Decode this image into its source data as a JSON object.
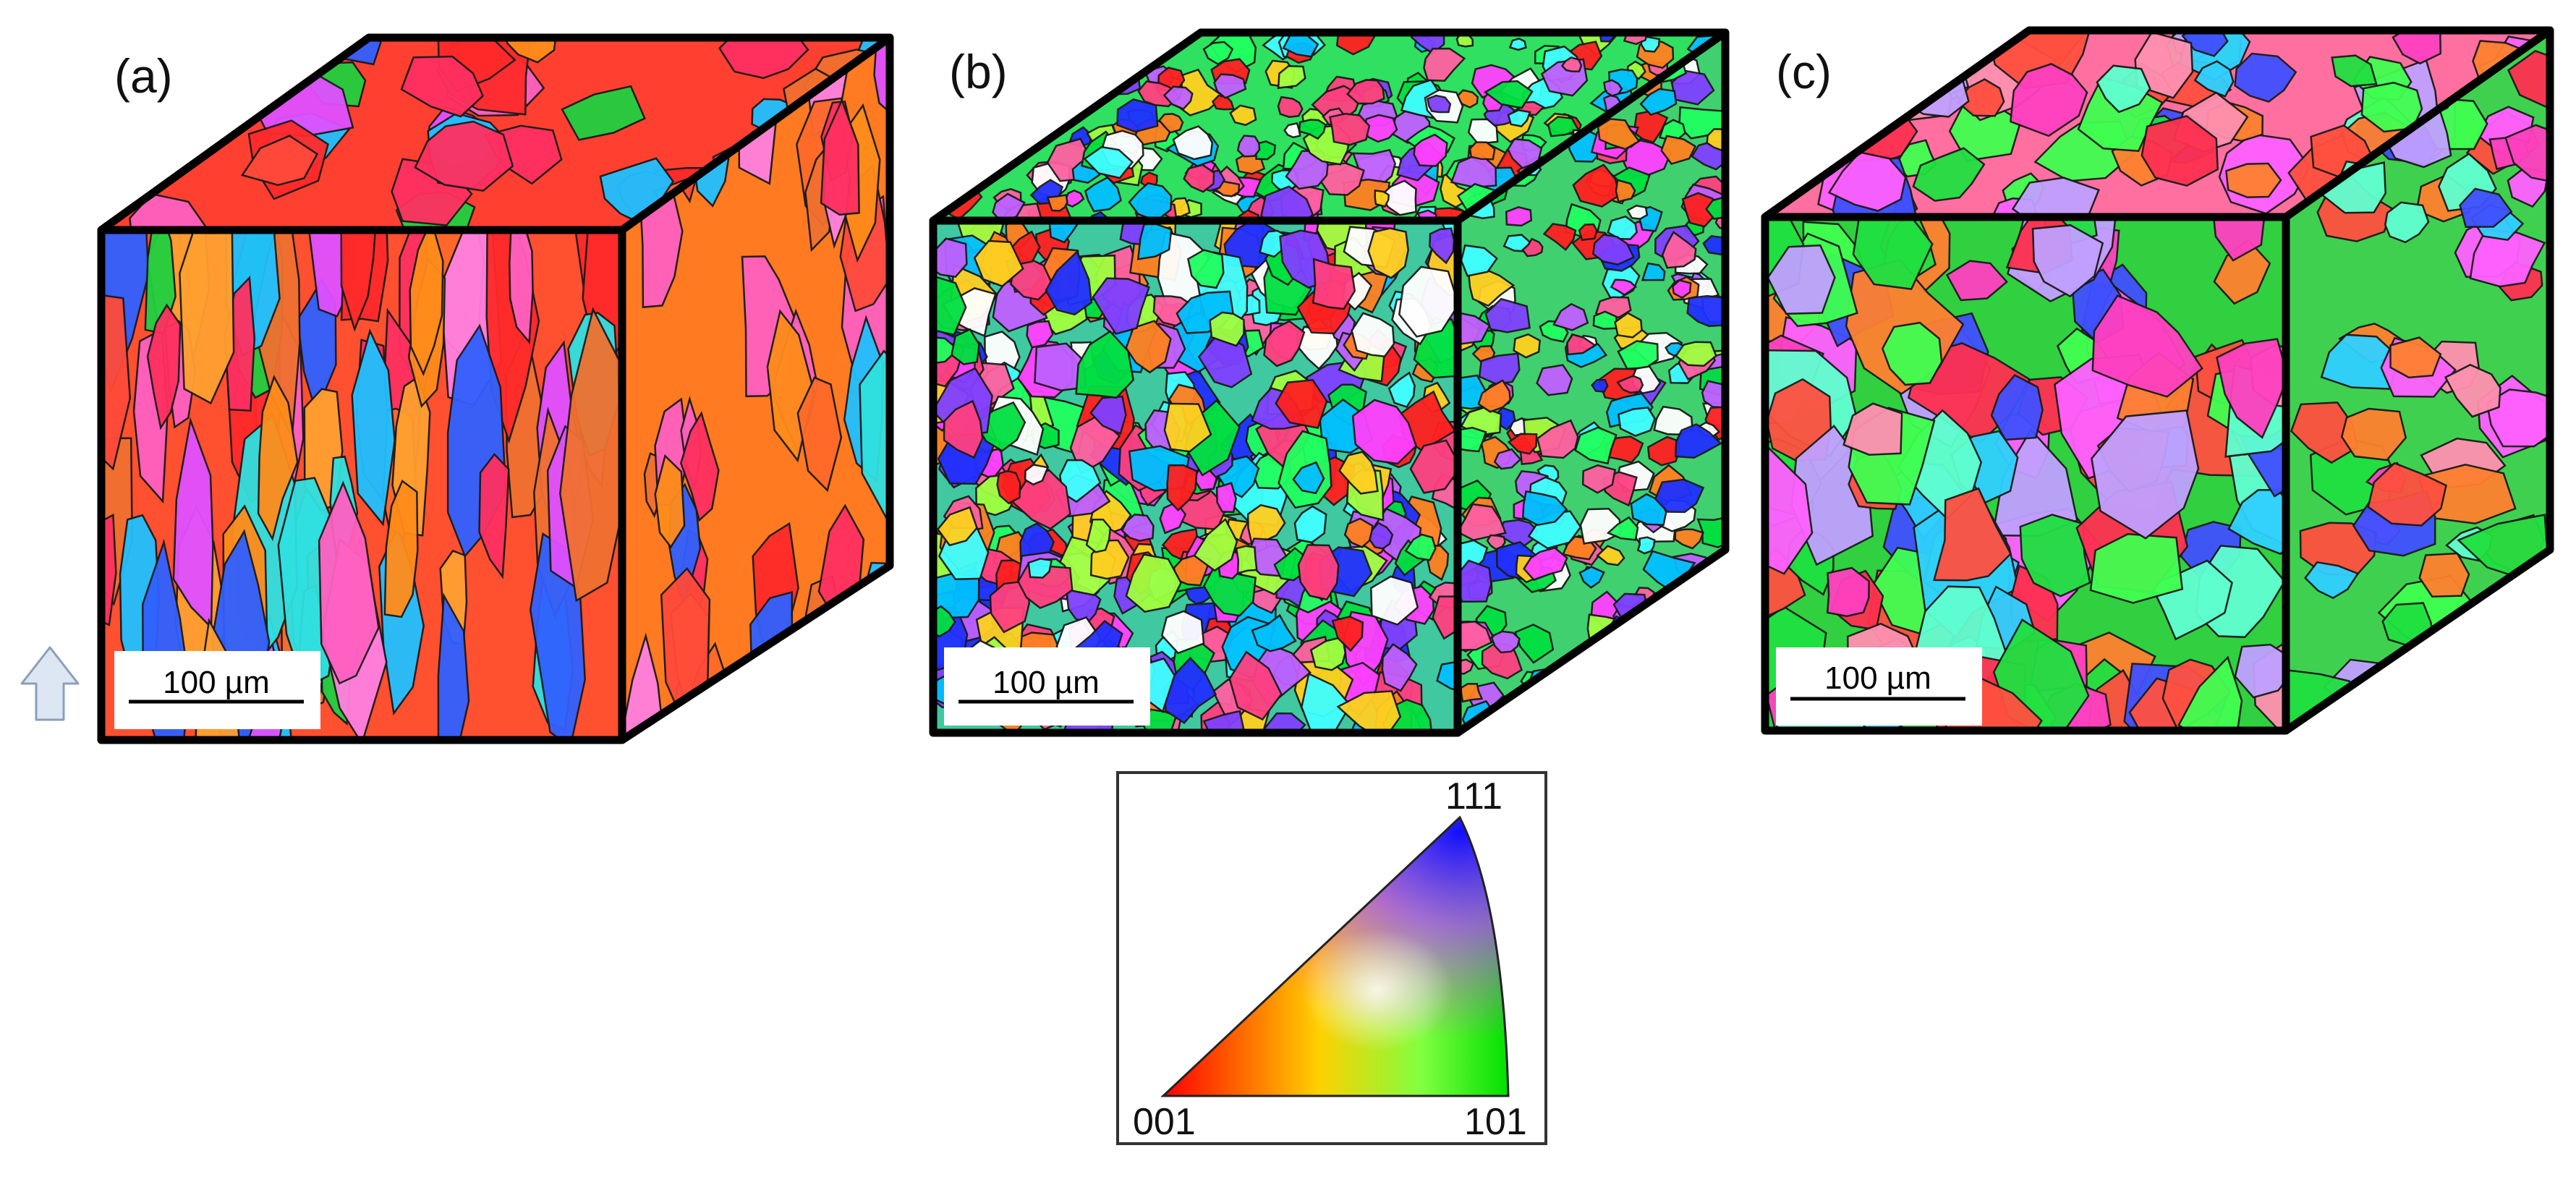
{
  "figure": {
    "panels": [
      {
        "label": "(a)",
        "scale_bar": "100 µm",
        "texture": "columnar"
      },
      {
        "label": "(b)",
        "scale_bar": "100 µm",
        "texture": "fine"
      },
      {
        "label": "(c)",
        "scale_bar": "100 µm",
        "texture": "coarse"
      }
    ],
    "build_direction_arrow": "up-arrow-icon",
    "ipf_legend": {
      "corner_001": "001",
      "corner_101": "101",
      "corner_111": "111",
      "colors": {
        "001": "#ff0000",
        "101": "#00e000",
        "111": "#1010ff"
      }
    }
  }
}
